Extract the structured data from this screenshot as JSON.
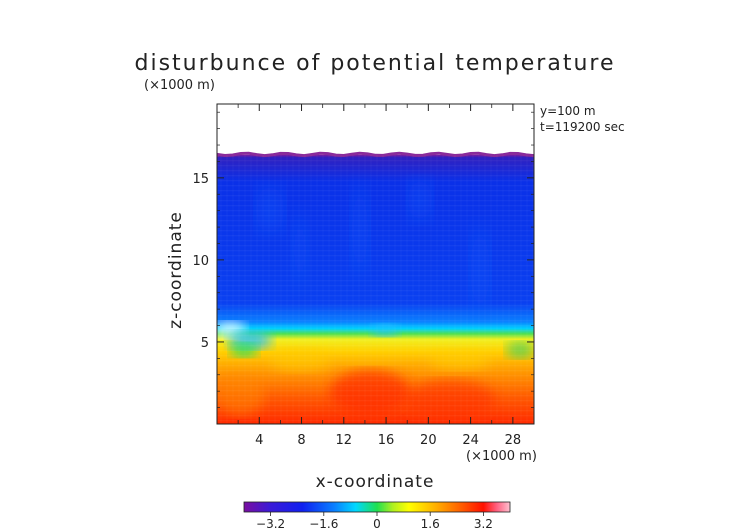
{
  "chart_data": {
    "type": "heatmap",
    "title": "disturbunce of potential temperature",
    "unit_label_top": "(×1000 m)",
    "annotations": [
      "y=100 m",
      "t=119200 sec"
    ],
    "xlabel": "x-coordinate",
    "ylabel": "z-coordinate",
    "x_unit_label": "(×1000 m)",
    "xlim": [
      0,
      30
    ],
    "ylim": [
      0,
      19.5
    ],
    "x_ticks": [
      4,
      8,
      12,
      16,
      20,
      24,
      28
    ],
    "y_ticks": [
      5,
      10,
      15
    ],
    "top_of_field_z": 16.4,
    "colorbar": {
      "range": [
        -4.0,
        4.0
      ],
      "ticks": [
        "−3.2",
        "−1.6",
        "0",
        "1.6",
        "3.2"
      ],
      "tick_values": [
        -3.2,
        -1.6,
        0,
        1.6,
        3.2
      ]
    },
    "profile_z": [
      0,
      2,
      3.5,
      4.5,
      5.3,
      5.7,
      6.2,
      8,
      12,
      15,
      16.4
    ],
    "profile_value": [
      3.0,
      2.6,
      2.0,
      1.4,
      0.8,
      -0.4,
      -1.6,
      -2.3,
      -2.5,
      -2.6,
      -3.0
    ]
  }
}
